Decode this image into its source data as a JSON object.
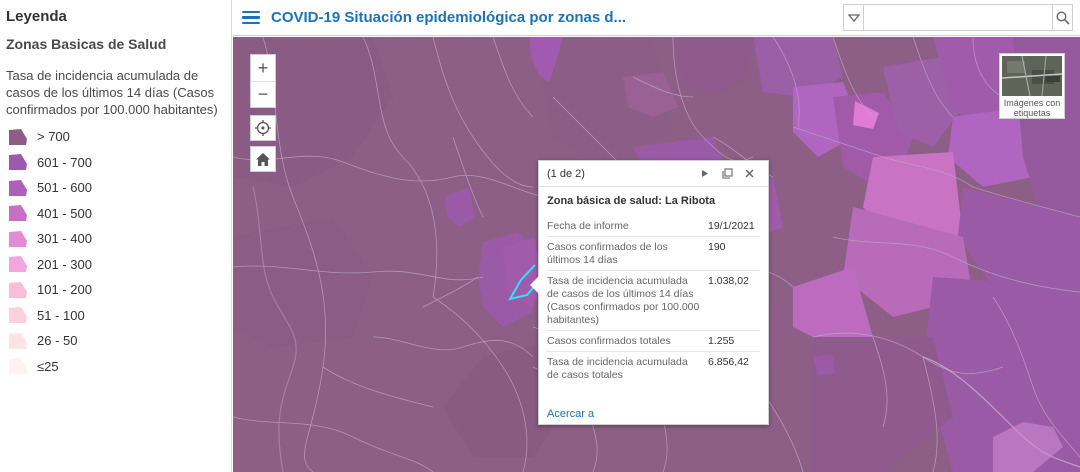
{
  "legend": {
    "title": "Leyenda",
    "layer": "Zonas Basicas de Salud",
    "field": "Tasa de incidencia acumulada de casos de los últimos 14 días (Casos confirmados por 100.000 habitantes)",
    "classes": [
      {
        "label": "> 700",
        "color": "#8f5c89"
      },
      {
        "label": "601 - 700",
        "color": "#9b5aad"
      },
      {
        "label": "501 - 600",
        "color": "#ad5fba"
      },
      {
        "label": "401 - 500",
        "color": "#c76fc4"
      },
      {
        "label": "301 - 400",
        "color": "#e48bd6"
      },
      {
        "label": "201 - 300",
        "color": "#f2a6de"
      },
      {
        "label": "101 - 200",
        "color": "#f8bdd9"
      },
      {
        "label": "51 - 100",
        "color": "#fbd2dc"
      },
      {
        "label": "26 - 50",
        "color": "#fde3e4"
      },
      {
        "label": "≤25",
        "color": "#fef3f1"
      }
    ]
  },
  "header": {
    "title": "COVID-19 Situación epidemiológica por zonas d...",
    "search_value": ""
  },
  "map_controls": {
    "zoom_in": "+",
    "zoom_out": "−",
    "basemap_label": "Imágenes con etiquetas"
  },
  "popup": {
    "count": "(1 de 2)",
    "title": "Zona básica de salud: La Ribota",
    "attributes": [
      {
        "key": "Fecha de informe",
        "value": "19/1/2021"
      },
      {
        "key": "Casos confirmados de los últimos 14 días",
        "value": "190"
      },
      {
        "key": "Tasa de incidencia acumulada de casos de los últimos 14 días (Casos confirmados por 100.000 habitantes)",
        "value": "1.038,02"
      },
      {
        "key": "Casos confirmados totales",
        "value": "1.255"
      },
      {
        "key": "Tasa de incidencia acumulada de casos totales",
        "value": "6.856,42"
      }
    ],
    "zoom_link": "Acercar a"
  },
  "colors": {
    "accent": "#1a73ba",
    "map_base": "#8d5e86",
    "selection": "#29e5ff"
  }
}
